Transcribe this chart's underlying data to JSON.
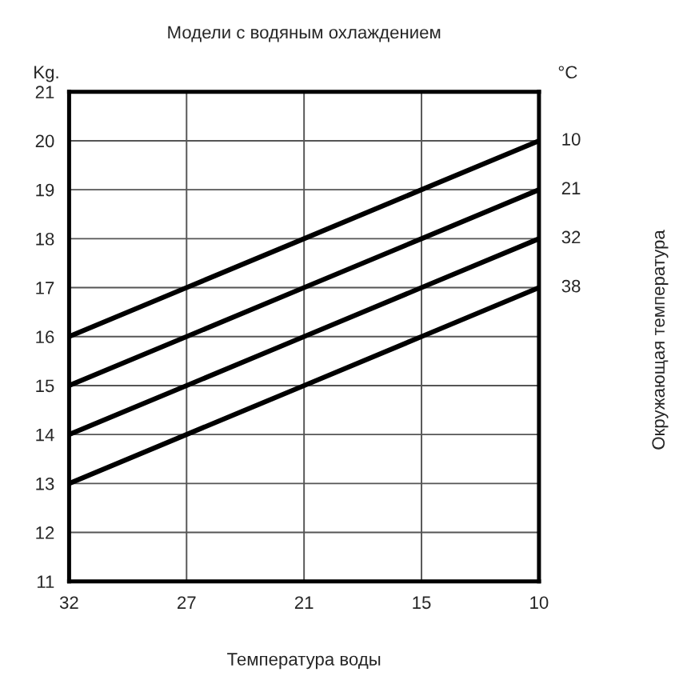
{
  "chart_data": {
    "type": "line",
    "title": "Модели с водяным охлаждением",
    "xlabel": "Температура воды",
    "ylabel": "Kg.",
    "legend_title": "°C",
    "annotations": [
      "Окружающая температура"
    ],
    "categories": [
      "32",
      "27",
      "21",
      "15",
      "10"
    ],
    "series": [
      {
        "name": "10",
        "color": "#000000",
        "values": [
          16,
          17,
          18,
          19,
          20
        ]
      },
      {
        "name": "21",
        "color": "#000000",
        "values": [
          15,
          16,
          17,
          18,
          19
        ]
      },
      {
        "name": "32",
        "color": "#000000",
        "values": [
          14,
          15,
          16,
          17,
          18
        ]
      },
      {
        "name": "38",
        "color": "#000000",
        "values": [
          13,
          14,
          15,
          16,
          17
        ]
      }
    ],
    "ylim": [
      11,
      21
    ],
    "yticks": [
      11,
      12,
      13,
      14,
      15,
      16,
      17,
      18,
      19,
      20,
      21
    ],
    "grid": true,
    "legend": "right",
    "marker": "none",
    "line_style": "solid"
  }
}
